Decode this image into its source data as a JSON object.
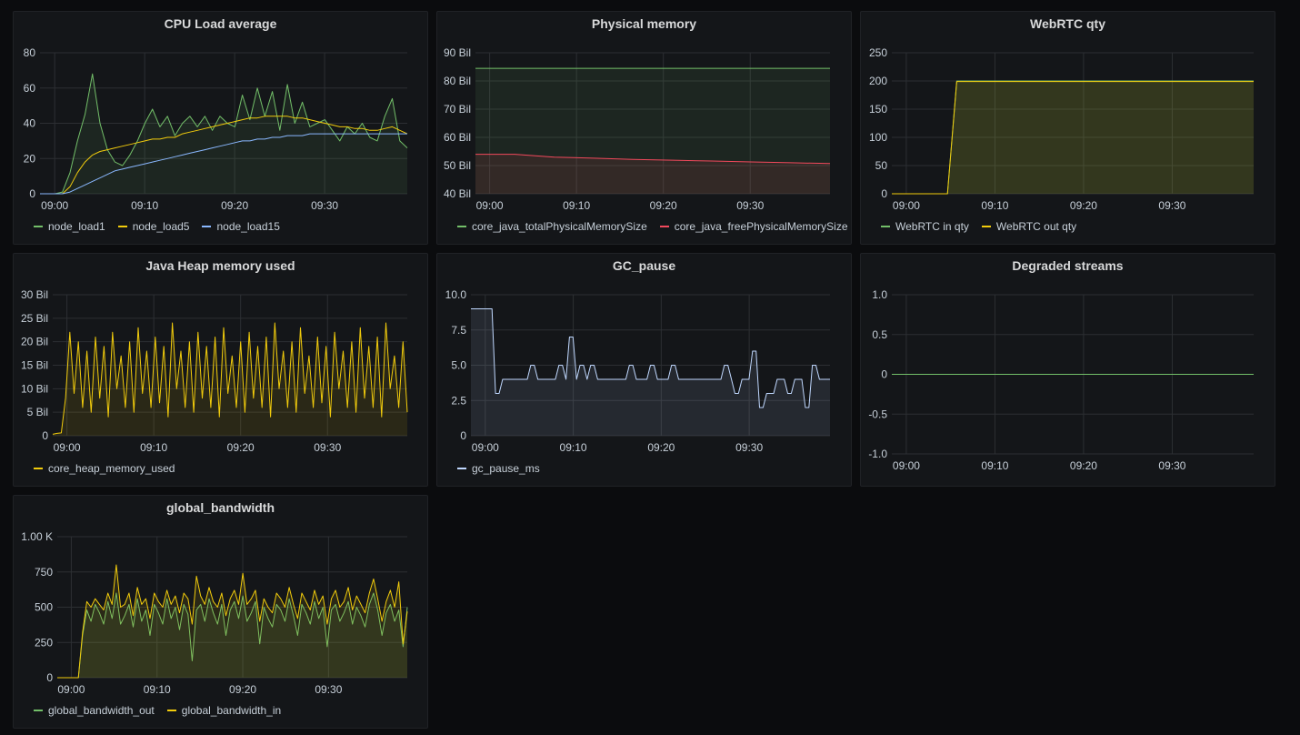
{
  "panels": [
    {
      "id": "cpu",
      "title": "CPU Load average",
      "box": [
        14,
        12,
        457,
        257
      ],
      "plot": [
        43,
        57,
        447,
        212
      ],
      "ylim": [
        0,
        80
      ],
      "yticks": [
        0,
        20,
        40,
        60,
        80
      ],
      "ytick_labels": [
        "0",
        "20",
        "40",
        "60",
        "80"
      ],
      "xticks": [
        "09:00",
        "09:10",
        "09:20",
        "09:30"
      ],
      "series": [
        {
          "name": "node_load1",
          "color": "#73bf69",
          "fill": true,
          "values": [
            0,
            0,
            0,
            1,
            12,
            30,
            45,
            68,
            40,
            25,
            18,
            16,
            22,
            30,
            40,
            48,
            38,
            44,
            33,
            40,
            44,
            38,
            44,
            36,
            44,
            40,
            38,
            56,
            42,
            60,
            44,
            58,
            36,
            62,
            40,
            52,
            38,
            40,
            42,
            36,
            30,
            38,
            34,
            40,
            32,
            30,
            44,
            54,
            30,
            26
          ]
        },
        {
          "name": "node_load5",
          "color": "#f2cc0c",
          "fill": false,
          "values": [
            0,
            0,
            0,
            0,
            4,
            12,
            18,
            22,
            24,
            25,
            26,
            27,
            28,
            29,
            30,
            31,
            31,
            32,
            32,
            34,
            35,
            36,
            37,
            38,
            39,
            40,
            41,
            42,
            43,
            43,
            44,
            44,
            44,
            44,
            43,
            43,
            42,
            41,
            40,
            39,
            38,
            38,
            37,
            37,
            36,
            36,
            37,
            38,
            36,
            34
          ]
        },
        {
          "name": "node_load15",
          "color": "#8ab8ff",
          "fill": false,
          "values": [
            0,
            0,
            0,
            0,
            1,
            3,
            5,
            7,
            9,
            11,
            13,
            14,
            15,
            16,
            17,
            18,
            19,
            20,
            21,
            22,
            23,
            24,
            25,
            26,
            27,
            28,
            29,
            30,
            30,
            31,
            31,
            32,
            32,
            33,
            33,
            33,
            34,
            34,
            34,
            34,
            34,
            34,
            34,
            34,
            34,
            34,
            34,
            34,
            34,
            34
          ]
        }
      ]
    },
    {
      "id": "memory",
      "title": "Physical memory",
      "box": [
        480,
        12,
        457,
        257
      ],
      "plot": [
        522,
        57,
        912,
        212
      ],
      "ylim": [
        40,
        90
      ],
      "yticks": [
        40,
        50,
        60,
        70,
        80,
        90
      ],
      "ytick_labels": [
        "40 Bil",
        "50 Bil",
        "60 Bil",
        "70 Bil",
        "80 Bil",
        "90 Bil"
      ],
      "xticks": [
        "09:00",
        "09:10",
        "09:20",
        "09:30"
      ],
      "series": [
        {
          "name": "core_java_totalPhysicalMemorySize",
          "color": "#73bf69",
          "fill": true,
          "values": [
            84.5,
            84.5,
            84.5,
            84.5,
            84.5,
            84.5,
            84.5,
            84.5,
            84.5,
            84.5
          ]
        },
        {
          "name": "core_java_freePhysicalMemorySize",
          "color": "#f2495c",
          "fill": true,
          "values": [
            54,
            54,
            53,
            52.6,
            52.2,
            51.9,
            51.6,
            51.3,
            51,
            50.7
          ]
        }
      ]
    },
    {
      "id": "webrtc",
      "title": "WebRTC qty",
      "box": [
        946,
        12,
        457,
        257
      ],
      "plot": [
        980,
        57,
        1378,
        212
      ],
      "ylim": [
        0,
        250
      ],
      "yticks": [
        0,
        50,
        100,
        150,
        200,
        250
      ],
      "ytick_labels": [
        "0",
        "50",
        "100",
        "150",
        "200",
        "250"
      ],
      "xticks": [
        "09:00",
        "09:10",
        "09:20",
        "09:30"
      ],
      "series": [
        {
          "name": "WebRTC in qty",
          "color": "#73bf69",
          "fill": true,
          "values": [
            0,
            0,
            0,
            0,
            0,
            0,
            0,
            200,
            200,
            200,
            200,
            200,
            200,
            200,
            200,
            200,
            200,
            200,
            200,
            200,
            200,
            200,
            200,
            200,
            200,
            200,
            200,
            200,
            200,
            200,
            200,
            200,
            200,
            200,
            200,
            200,
            200,
            200,
            200,
            200
          ]
        },
        {
          "name": "WebRTC out qty",
          "color": "#f2cc0c",
          "fill": true,
          "values": [
            0,
            0,
            0,
            0,
            0,
            0,
            0,
            199,
            199,
            199,
            199,
            199,
            199,
            199,
            199,
            199,
            199,
            199,
            199,
            199,
            199,
            199,
            199,
            199,
            199,
            199,
            199,
            199,
            199,
            199,
            199,
            199,
            199,
            199,
            199,
            199,
            199,
            199,
            199,
            199
          ]
        }
      ]
    },
    {
      "id": "heap",
      "title": "Java Heap memory used",
      "box": [
        14,
        278,
        457,
        257
      ],
      "plot": [
        57,
        323,
        447,
        478
      ],
      "ylim": [
        0,
        30
      ],
      "yticks": [
        0,
        5,
        10,
        15,
        20,
        25,
        30
      ],
      "ytick_labels": [
        "0",
        "5 Bil",
        "10 Bil",
        "15 Bil",
        "20 Bil",
        "25 Bil",
        "30 Bil"
      ],
      "xticks": [
        "09:00",
        "09:10",
        "09:20",
        "09:30"
      ],
      "series": [
        {
          "name": "core_heap_memory_used",
          "color": "#f2cc0c",
          "fill": true,
          "values": [
            0.3,
            0.5,
            0.6,
            8,
            22,
            9,
            20,
            6,
            18,
            5,
            21,
            8,
            19,
            4,
            22,
            10,
            17,
            6,
            20,
            5,
            23,
            9,
            18,
            6,
            21,
            7,
            19,
            4,
            24,
            10,
            18,
            6,
            20,
            5,
            22,
            8,
            19,
            6,
            21,
            4,
            23,
            9,
            17,
            6,
            20,
            5,
            22,
            8,
            19,
            6,
            21,
            4,
            24,
            10,
            18,
            6,
            20,
            5,
            23,
            9,
            17,
            6,
            21,
            7,
            19,
            4,
            22,
            10,
            18,
            6,
            20,
            5,
            23,
            8,
            19,
            6,
            21,
            4,
            24,
            10,
            17,
            6,
            20,
            5
          ]
        }
      ]
    },
    {
      "id": "gc",
      "title": "GC_pause",
      "box": [
        480,
        278,
        457,
        257
      ],
      "plot": [
        517,
        323,
        912,
        478
      ],
      "ylim": [
        0,
        10
      ],
      "yticks": [
        0,
        2.5,
        5,
        7.5,
        10
      ],
      "ytick_labels": [
        "0",
        "2.5",
        "5.0",
        "7.5",
        "10.0"
      ],
      "xticks": [
        "09:00",
        "09:10",
        "09:20",
        "09:30"
      ],
      "series": [
        {
          "name": "gc_pause_ms",
          "color": "#c0d8ff",
          "fill": true,
          "values": [
            9,
            9,
            9,
            9,
            9,
            9,
            9,
            3,
            3,
            4,
            4,
            4,
            4,
            4,
            4,
            4,
            4,
            5,
            5,
            4,
            4,
            4,
            4,
            4,
            4,
            5,
            5,
            4,
            7,
            7,
            4,
            5,
            5,
            4,
            5,
            5,
            4,
            4,
            4,
            4,
            4,
            4,
            4,
            4,
            4,
            5,
            5,
            4,
            4,
            4,
            4,
            5,
            5,
            4,
            4,
            4,
            4,
            5,
            5,
            4,
            4,
            4,
            4,
            4,
            4,
            4,
            4,
            4,
            4,
            4,
            4,
            4,
            5,
            5,
            4,
            3,
            3,
            4,
            4,
            4,
            6,
            6,
            2,
            2,
            3,
            3,
            3,
            4,
            4,
            4,
            3,
            3,
            4,
            4,
            4,
            2,
            2,
            5,
            5,
            4,
            4,
            4,
            4
          ]
        }
      ]
    },
    {
      "id": "degraded",
      "title": "Degraded streams",
      "box": [
        946,
        278,
        457,
        257
      ],
      "plot": [
        980,
        323,
        1378,
        498
      ],
      "ylim": [
        -1,
        1
      ],
      "yticks": [
        -1,
        -0.5,
        0,
        0.5,
        1
      ],
      "ytick_labels": [
        "-1.0",
        "-0.5",
        "0",
        "0.5",
        "1.0"
      ],
      "xticks": [
        "09:00",
        "09:10",
        "09:20",
        "09:30"
      ],
      "series": [
        {
          "name": "",
          "color": "#73bf69",
          "fill": false,
          "values": [
            0,
            0
          ]
        }
      ]
    },
    {
      "id": "bandwidth",
      "title": "global_bandwidth",
      "box": [
        14,
        544,
        457,
        257
      ],
      "plot": [
        62,
        589,
        447,
        744
      ],
      "ylim": [
        0,
        1000
      ],
      "yticks": [
        0,
        250,
        500,
        750,
        1000
      ],
      "ytick_labels": [
        "0",
        "250",
        "500",
        "750",
        "1.00 K"
      ],
      "xticks": [
        "09:00",
        "09:10",
        "09:20",
        "09:30"
      ],
      "series": [
        {
          "name": "global_bandwidth_out",
          "color": "#73bf69",
          "fill": true,
          "values": [
            0,
            0,
            0,
            0,
            0,
            0,
            300,
            480,
            400,
            520,
            460,
            380,
            540,
            420,
            600,
            380,
            440,
            520,
            360,
            560,
            400,
            480,
            300,
            520,
            460,
            380,
            560,
            420,
            500,
            340,
            520,
            450,
            120,
            480,
            520,
            400,
            560,
            460,
            380,
            520,
            300,
            480,
            540,
            420,
            580,
            400,
            460,
            540,
            240,
            500,
            420,
            360,
            520,
            480,
            400,
            560,
            440,
            300,
            520,
            460,
            380,
            540,
            420,
            500,
            220,
            480,
            520,
            400,
            460,
            540,
            380,
            500,
            440,
            360,
            520,
            600,
            480,
            300,
            460,
            520,
            400,
            480,
            220,
            500
          ]
        },
        {
          "name": "global_bandwidth_in",
          "color": "#f2cc0c",
          "fill": true,
          "values": [
            0,
            0,
            0,
            0,
            0,
            0,
            320,
            540,
            500,
            560,
            520,
            480,
            600,
            520,
            800,
            500,
            520,
            600,
            440,
            640,
            520,
            560,
            420,
            600,
            540,
            500,
            620,
            520,
            580,
            460,
            600,
            560,
            380,
            720,
            580,
            520,
            640,
            540,
            500,
            600,
            440,
            560,
            620,
            520,
            740,
            520,
            560,
            620,
            400,
            560,
            500,
            460,
            600,
            560,
            500,
            640,
            520,
            420,
            600,
            540,
            480,
            620,
            520,
            580,
            380,
            560,
            620,
            500,
            540,
            640,
            480,
            580,
            520,
            460,
            600,
            700,
            560,
            400,
            540,
            620,
            500,
            680,
            240,
            470
          ]
        }
      ]
    }
  ]
}
